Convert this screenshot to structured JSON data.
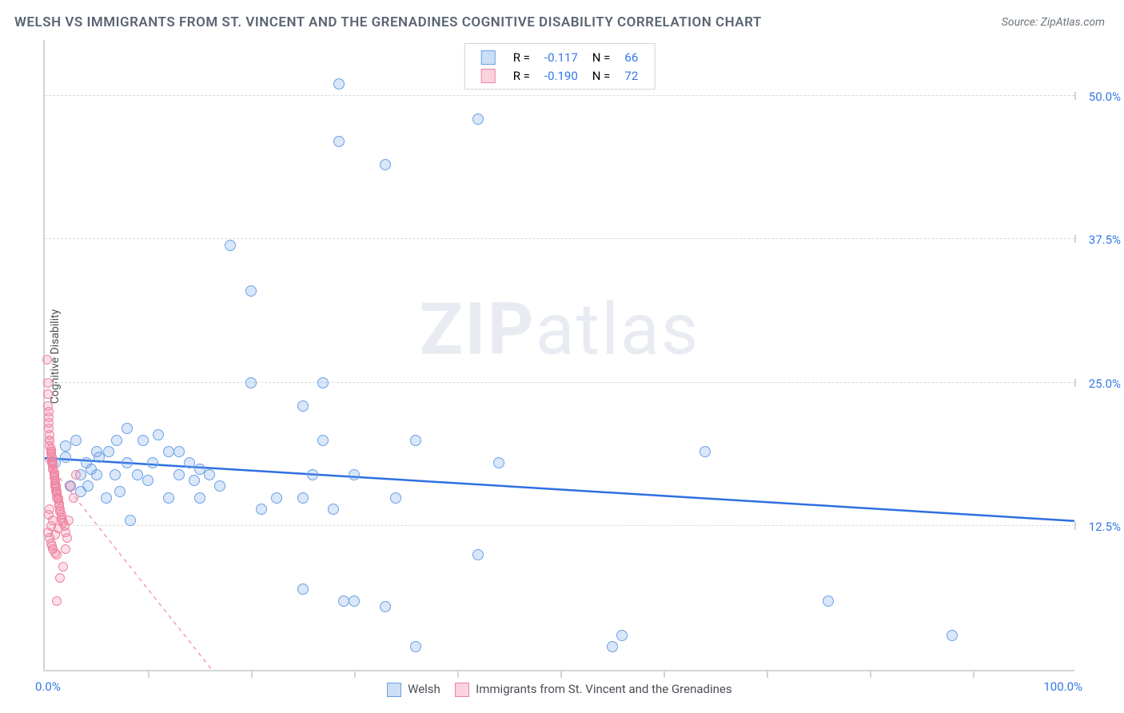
{
  "title": "WELSH VS IMMIGRANTS FROM ST. VINCENT AND THE GRENADINES COGNITIVE DISABILITY CORRELATION CHART",
  "source_label": "Source: ",
  "source_name": "ZipAtlas.com",
  "y_axis_label": "Cognitive Disability",
  "watermark_zip": "ZIP",
  "watermark_atlas": "atlas",
  "chart": {
    "type": "scatter",
    "xlim": [
      0,
      100
    ],
    "ylim": [
      0,
      55
    ],
    "y_ticks": [
      12.5,
      25.0,
      37.5,
      50.0
    ],
    "y_tick_labels": [
      "12.5%",
      "25.0%",
      "37.5%",
      "50.0%"
    ],
    "x_tick_positions": [
      10,
      20,
      30,
      40,
      50,
      60,
      70,
      80,
      90
    ],
    "x_left_label": "0.0%",
    "x_right_label": "100.0%",
    "background_color": "#ffffff",
    "grid_color": "#d8dce2",
    "axis_color": "#d0d4da",
    "marker_radius_blue": 7,
    "marker_radius_pink": 6,
    "series": [
      {
        "name": "Welsh",
        "color_fill": "rgba(106,160,230,0.25)",
        "color_stroke": "#6aa0e6",
        "r_value": "-0.117",
        "n_value": "66",
        "trend": {
          "x1": 0,
          "y1": 18.5,
          "x2": 100,
          "y2": 13.0,
          "stroke": "#2f6fe0",
          "width": 2.5,
          "dash": "none"
        },
        "points": [
          {
            "x": 1,
            "y": 18
          },
          {
            "x": 2,
            "y": 18.5
          },
          {
            "x": 2.5,
            "y": 16
          },
          {
            "x": 2,
            "y": 19.5
          },
          {
            "x": 3,
            "y": 20
          },
          {
            "x": 3.5,
            "y": 17
          },
          {
            "x": 3.5,
            "y": 15.5
          },
          {
            "x": 4,
            "y": 18
          },
          {
            "x": 4.5,
            "y": 17.5
          },
          {
            "x": 4.2,
            "y": 16
          },
          {
            "x": 5,
            "y": 19
          },
          {
            "x": 5,
            "y": 17
          },
          {
            "x": 5.3,
            "y": 18.5
          },
          {
            "x": 6,
            "y": 15
          },
          {
            "x": 6.2,
            "y": 19
          },
          {
            "x": 6.8,
            "y": 17
          },
          {
            "x": 7,
            "y": 20
          },
          {
            "x": 7.3,
            "y": 15.5
          },
          {
            "x": 8,
            "y": 18
          },
          {
            "x": 8,
            "y": 21
          },
          {
            "x": 8.3,
            "y": 13
          },
          {
            "x": 9,
            "y": 17
          },
          {
            "x": 9.5,
            "y": 20
          },
          {
            "x": 10,
            "y": 16.5
          },
          {
            "x": 10.5,
            "y": 18
          },
          {
            "x": 11,
            "y": 20.5
          },
          {
            "x": 12,
            "y": 19
          },
          {
            "x": 12,
            "y": 15
          },
          {
            "x": 13,
            "y": 17
          },
          {
            "x": 13,
            "y": 19
          },
          {
            "x": 14,
            "y": 18
          },
          {
            "x": 14.5,
            "y": 16.5
          },
          {
            "x": 15,
            "y": 17.5
          },
          {
            "x": 15,
            "y": 15
          },
          {
            "x": 16,
            "y": 17
          },
          {
            "x": 17,
            "y": 16
          },
          {
            "x": 18,
            "y": 37
          },
          {
            "x": 20,
            "y": 25
          },
          {
            "x": 20,
            "y": 33
          },
          {
            "x": 21,
            "y": 14
          },
          {
            "x": 22.5,
            "y": 15
          },
          {
            "x": 25,
            "y": 23
          },
          {
            "x": 25,
            "y": 15
          },
          {
            "x": 25,
            "y": 7
          },
          {
            "x": 26,
            "y": 17
          },
          {
            "x": 27,
            "y": 25
          },
          {
            "x": 27,
            "y": 20
          },
          {
            "x": 28,
            "y": 14
          },
          {
            "x": 28.5,
            "y": 46
          },
          {
            "x": 28.5,
            "y": 51
          },
          {
            "x": 29,
            "y": 6
          },
          {
            "x": 30,
            "y": 6
          },
          {
            "x": 30,
            "y": 17
          },
          {
            "x": 33,
            "y": 44
          },
          {
            "x": 33,
            "y": 5.5
          },
          {
            "x": 34,
            "y": 15
          },
          {
            "x": 36,
            "y": 2
          },
          {
            "x": 36,
            "y": 20
          },
          {
            "x": 42,
            "y": 48
          },
          {
            "x": 42,
            "y": 10
          },
          {
            "x": 44,
            "y": 18
          },
          {
            "x": 55,
            "y": 2
          },
          {
            "x": 56,
            "y": 3
          },
          {
            "x": 64,
            "y": 19
          },
          {
            "x": 76,
            "y": 6
          },
          {
            "x": 88,
            "y": 3
          }
        ]
      },
      {
        "name": "Immigrants from St. Vincent and the Grenadines",
        "color_fill": "rgba(240,130,160,0.25)",
        "color_stroke": "#f082a0",
        "r_value": "-0.190",
        "n_value": "72",
        "trend": {
          "x1": 0,
          "y1": 18.4,
          "x2": 18,
          "y2": -2,
          "stroke": "#f59cb5",
          "width": 1.5,
          "dash": "5,5"
        },
        "points": [
          {
            "x": 0.2,
            "y": 27
          },
          {
            "x": 0.3,
            "y": 25
          },
          {
            "x": 0.3,
            "y": 24
          },
          {
            "x": 0.3,
            "y": 23
          },
          {
            "x": 0.4,
            "y": 22
          },
          {
            "x": 0.4,
            "y": 22.5
          },
          {
            "x": 0.4,
            "y": 21.5
          },
          {
            "x": 0.4,
            "y": 21
          },
          {
            "x": 0.5,
            "y": 20.5
          },
          {
            "x": 0.5,
            "y": 20
          },
          {
            "x": 0.5,
            "y": 20
          },
          {
            "x": 0.5,
            "y": 19.5
          },
          {
            "x": 0.6,
            "y": 19.2
          },
          {
            "x": 0.6,
            "y": 19
          },
          {
            "x": 0.6,
            "y": 19
          },
          {
            "x": 0.6,
            "y": 18.8
          },
          {
            "x": 0.7,
            "y": 18.5
          },
          {
            "x": 0.7,
            "y": 18.5
          },
          {
            "x": 0.7,
            "y": 18.2
          },
          {
            "x": 0.7,
            "y": 18
          },
          {
            "x": 0.8,
            "y": 18
          },
          {
            "x": 0.8,
            "y": 17.8
          },
          {
            "x": 0.8,
            "y": 17.5
          },
          {
            "x": 0.8,
            "y": 17.5
          },
          {
            "x": 0.9,
            "y": 17.2
          },
          {
            "x": 0.9,
            "y": 17
          },
          {
            "x": 0.9,
            "y": 17
          },
          {
            "x": 0.9,
            "y": 16.8
          },
          {
            "x": 1.0,
            "y": 16.5
          },
          {
            "x": 1.0,
            "y": 16.5
          },
          {
            "x": 1.0,
            "y": 16.2
          },
          {
            "x": 1.0,
            "y": 16
          },
          {
            "x": 1.1,
            "y": 16
          },
          {
            "x": 1.1,
            "y": 15.8
          },
          {
            "x": 1.1,
            "y": 15.5
          },
          {
            "x": 1.2,
            "y": 15.5
          },
          {
            "x": 1.2,
            "y": 15.3
          },
          {
            "x": 1.2,
            "y": 15
          },
          {
            "x": 1.3,
            "y": 15
          },
          {
            "x": 1.3,
            "y": 14.8
          },
          {
            "x": 1.4,
            "y": 14.5
          },
          {
            "x": 1.4,
            "y": 14.3
          },
          {
            "x": 1.5,
            "y": 14
          },
          {
            "x": 1.5,
            "y": 13.8
          },
          {
            "x": 1.6,
            "y": 13.5
          },
          {
            "x": 1.6,
            "y": 13.2
          },
          {
            "x": 1.7,
            "y": 13
          },
          {
            "x": 1.8,
            "y": 12.8
          },
          {
            "x": 1.9,
            "y": 12.5
          },
          {
            "x": 2,
            "y": 12
          },
          {
            "x": 0.5,
            "y": 11.5
          },
          {
            "x": 0.6,
            "y": 11
          },
          {
            "x": 0.7,
            "y": 10.8
          },
          {
            "x": 0.8,
            "y": 10.5
          },
          {
            "x": 1.0,
            "y": 10.2
          },
          {
            "x": 1.2,
            "y": 10
          },
          {
            "x": 0.6,
            "y": 12.5
          },
          {
            "x": 0.8,
            "y": 13
          },
          {
            "x": 1.0,
            "y": 11.8
          },
          {
            "x": 1.3,
            "y": 12.3
          },
          {
            "x": 1.2,
            "y": 6
          },
          {
            "x": 1.5,
            "y": 8
          },
          {
            "x": 1.8,
            "y": 9
          },
          {
            "x": 2,
            "y": 10.5
          },
          {
            "x": 2.2,
            "y": 11.5
          },
          {
            "x": 0.3,
            "y": 12
          },
          {
            "x": 0.4,
            "y": 13.5
          },
          {
            "x": 0.5,
            "y": 14
          },
          {
            "x": 2.3,
            "y": 13
          },
          {
            "x": 2.5,
            "y": 16
          },
          {
            "x": 2.8,
            "y": 15
          },
          {
            "x": 3,
            "y": 17
          }
        ]
      }
    ]
  },
  "legend_top": {
    "r_label": "R =",
    "n_label": "N ="
  },
  "legend_bottom": {
    "welsh": "Welsh",
    "svg": "Immigrants from St. Vincent and the Grenadines"
  }
}
